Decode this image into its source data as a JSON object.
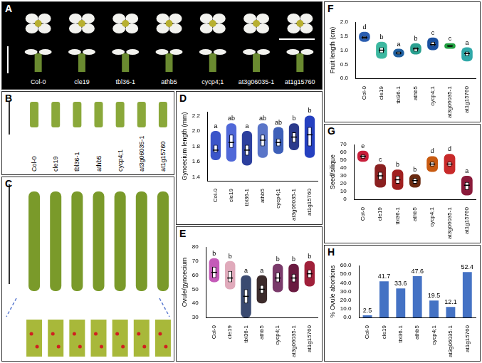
{
  "photo_panels": [
    {
      "panel_label": "A",
      "labels": [
        "Col-0",
        "cle19",
        "tbl36-1",
        "athb5",
        "cycp4;1",
        "at3g06035-1",
        "at1g15760"
      ]
    },
    {
      "panel_label": "B",
      "labels": [
        "Col-0",
        "cle19",
        "tbl36-1",
        "athb5",
        "cycp4;1",
        "at3g06035-1",
        "at1g15760"
      ]
    },
    {
      "panel_label": "C"
    }
  ],
  "chart_data": [
    {
      "panel_label": "D",
      "type": "violin",
      "y_label": "Gynoecium length (mm)",
      "categories": [
        "Col-0",
        "cle19",
        "tbl36-1",
        "athb5",
        "cycp4;1",
        "at3g06035-1",
        "at1g15760"
      ],
      "min": [
        1.62,
        1.6,
        1.55,
        1.65,
        1.7,
        1.75,
        1.65
      ],
      "q1": [
        1.72,
        1.78,
        1.68,
        1.8,
        1.8,
        1.85,
        1.8
      ],
      "median": [
        1.75,
        1.85,
        1.75,
        1.88,
        1.85,
        1.92,
        1.95
      ],
      "q3": [
        1.82,
        1.95,
        1.82,
        1.95,
        1.9,
        1.98,
        2.05
      ],
      "max": [
        2.0,
        2.1,
        2.0,
        2.1,
        2.05,
        2.1,
        2.2
      ],
      "letters": [
        "a",
        "ab",
        "a",
        "ab",
        "ab",
        "b",
        "b"
      ],
      "colors": [
        "#3b55c9",
        "#5068d8",
        "#2c3f9e",
        "#5a75c8",
        "#3d5fb8",
        "#2b3a8c",
        "#2540c0"
      ],
      "ylim": [
        1.35,
        2.25
      ],
      "yticks": [
        1.4,
        1.6,
        1.8,
        {
          "value": 2,
          "label": "2.0"
        },
        2.2
      ],
      "grid": false
    },
    {
      "panel_label": "E",
      "type": "violin",
      "y_label": "Ovule/gynoecium",
      "categories": [
        "Col-0",
        "cle19",
        "tbl36-1",
        "athb5",
        "cycp4;1",
        "at3g06035-1",
        "at1g15760"
      ],
      "min": [
        55,
        50,
        30,
        40,
        48,
        48,
        52
      ],
      "q1": [
        58,
        55,
        40,
        47,
        55,
        55,
        58
      ],
      "median": [
        62,
        58,
        45,
        50,
        58,
        58,
        61
      ],
      "q3": [
        66,
        63,
        50,
        53,
        62,
        61,
        64
      ],
      "max": [
        72,
        70,
        60,
        60,
        68,
        68,
        70
      ],
      "letters": [
        "b",
        "b",
        "a",
        "a",
        "b",
        "b",
        "b"
      ],
      "colors": [
        "#c45ab8",
        "#e0aabb",
        "#3a4a70",
        "#3c2b2b",
        "#7a3a6a",
        "#6a1a40",
        "#a0203a"
      ],
      "ylim": [
        30,
        80
      ],
      "yticks": [
        30,
        40,
        50,
        60,
        70,
        80
      ],
      "grid": false
    },
    {
      "panel_label": "F",
      "type": "violin",
      "y_label": "Fruit length (cm)",
      "categories": [
        "Col-0",
        "cle19",
        "tbl36-1",
        "athb5",
        "cycp4;1",
        "at3g06035-1",
        "at1g15760"
      ],
      "min": [
        1.3,
        0.7,
        0.75,
        0.85,
        1.0,
        1.05,
        0.6
      ],
      "q1": [
        1.4,
        0.9,
        0.85,
        0.95,
        1.15,
        1.12,
        0.8
      ],
      "median": [
        1.45,
        1.0,
        0.9,
        1.05,
        1.2,
        1.15,
        0.88
      ],
      "q3": [
        1.5,
        1.1,
        0.95,
        1.1,
        1.3,
        1.18,
        0.95
      ],
      "max": [
        1.65,
        1.3,
        1.05,
        1.25,
        1.45,
        1.25,
        1.1
      ],
      "letters": [
        "d",
        "b",
        "a",
        "b",
        "c",
        "c",
        "a"
      ],
      "colors": [
        "#2a5db0",
        "#3cb8a0",
        "#2060a0",
        "#2aa090",
        "#1a50a0",
        "#20a040",
        "#2fa8a8"
      ],
      "ylim": [
        0,
        2
      ],
      "yticks": [
        {
          "value": 0,
          "label": "0.0"
        },
        0.5,
        {
          "value": 1,
          "label": "1.0"
        },
        1.5,
        {
          "value": 2,
          "label": "2.0"
        }
      ],
      "grid": false
    },
    {
      "panel_label": "G",
      "type": "violin",
      "y_label": "Seed/silique",
      "categories": [
        "Col-0",
        "cle19",
        "tbl36-1",
        "athb5",
        "cycp4;1",
        "at3g06035-1",
        "at1g15760"
      ],
      "min": [
        48,
        15,
        12,
        15,
        35,
        32,
        5
      ],
      "q1": [
        52,
        25,
        20,
        20,
        42,
        42,
        12
      ],
      "median": [
        55,
        30,
        25,
        24,
        45,
        45,
        18
      ],
      "q3": [
        57,
        35,
        30,
        27,
        48,
        48,
        22
      ],
      "max": [
        62,
        45,
        38,
        32,
        55,
        58,
        30
      ],
      "letters": [
        "e",
        "c",
        "b",
        "b",
        "d",
        "d",
        "a"
      ],
      "colors": [
        "#c81e3a",
        "#8a2020",
        "#a02020",
        "#6a2a10",
        "#c85a10",
        "#c82a2a",
        "#8a1a3a"
      ],
      "ylim": [
        0,
        70
      ],
      "yticks": [
        0,
        10,
        20,
        30,
        40,
        50,
        60,
        70
      ],
      "grid": false
    },
    {
      "panel_label": "H",
      "type": "bar",
      "y_label": "% Ovule abortions",
      "categories": [
        "Col-0",
        "cle19",
        "tbl36-1",
        "athb5",
        "cycp4;1",
        "at3g06035-1",
        "at1g15760"
      ],
      "values": [
        2.5,
        41.7,
        33.6,
        47.6,
        19.5,
        12.1,
        52.4
      ],
      "color": "#4472c4",
      "data_labels": true,
      "ylim": [
        0,
        60
      ],
      "yticks": [
        {
          "value": 0,
          "label": "0.0"
        },
        {
          "value": 10,
          "label": "10.0"
        },
        {
          "value": 20,
          "label": "20.0"
        },
        {
          "value": 30,
          "label": "30.0"
        },
        {
          "value": 40,
          "label": "40.0"
        },
        {
          "value": 50,
          "label": "50.0"
        },
        {
          "value": 60,
          "label": "60.0"
        }
      ],
      "grid": false
    }
  ]
}
